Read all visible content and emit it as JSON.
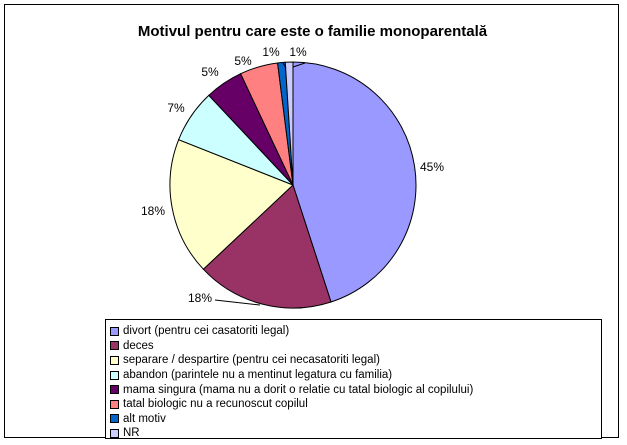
{
  "chart_data": {
    "type": "pie",
    "title": "Motivul pentru care este o familie monoparentală",
    "legend_position": "bottom",
    "slices": [
      {
        "name": "divort (pentru cei casatoriti legal)",
        "value": 45,
        "label": "45%",
        "color": "#9999ff"
      },
      {
        "name": "deces",
        "value": 18,
        "label": "18%",
        "color": "#993366"
      },
      {
        "name": "separare / despartire (pentru cei necasatoriti legal)",
        "value": 18,
        "label": "18%",
        "color": "#ffffcc"
      },
      {
        "name": "abandon (parintele nu a mentinut legatura cu familia)",
        "value": 7,
        "label": "7%",
        "color": "#ccffff"
      },
      {
        "name": "mama singura (mama nu a dorit o relatie cu tatal biologic al copilului)",
        "value": 5,
        "label": "5%",
        "color": "#660066"
      },
      {
        "name": "tatal biologic nu a recunoscut copilul",
        "value": 5,
        "label": "5%",
        "color": "#ff8080"
      },
      {
        "name": "alt motiv",
        "value": 1,
        "label": "1%",
        "color": "#0066cc"
      },
      {
        "name": "NR",
        "value": 1,
        "label": "1%",
        "color": "#ccccff"
      }
    ]
  }
}
